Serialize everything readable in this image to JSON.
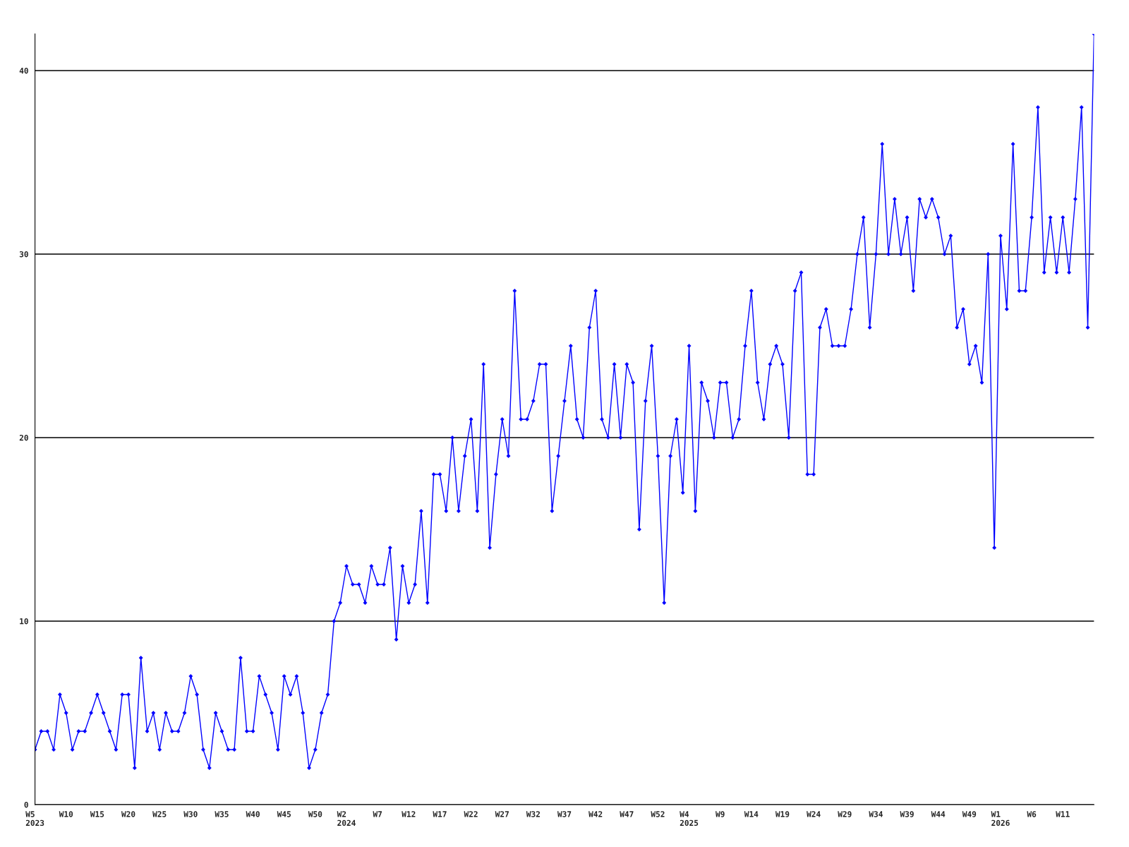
{
  "chart_data": {
    "type": "line",
    "categories": [
      "W5\n2023",
      null,
      null,
      null,
      null,
      "W10",
      null,
      null,
      null,
      null,
      "W15",
      null,
      null,
      null,
      null,
      "W20",
      null,
      null,
      null,
      null,
      "W25",
      null,
      null,
      null,
      null,
      "W30",
      null,
      null,
      null,
      null,
      "W35",
      null,
      null,
      null,
      null,
      "W40",
      null,
      null,
      null,
      null,
      "W45",
      null,
      null,
      null,
      null,
      "W50",
      null,
      null,
      null,
      null,
      "W2\n2024",
      null,
      null,
      null,
      null,
      "W7",
      null,
      null,
      null,
      null,
      "W12",
      null,
      null,
      null,
      null,
      "W17",
      null,
      null,
      null,
      null,
      "W22",
      null,
      null,
      null,
      null,
      "W27",
      null,
      null,
      null,
      null,
      "W32",
      null,
      null,
      null,
      null,
      "W37",
      null,
      null,
      null,
      null,
      "W42",
      null,
      null,
      null,
      null,
      "W47",
      null,
      null,
      null,
      null,
      "W52",
      null,
      null,
      null,
      null,
      "W4\n2025",
      null,
      null,
      null,
      null,
      "W9",
      null,
      null,
      null,
      null,
      "W14",
      null,
      null,
      null,
      null,
      "W19",
      null,
      null,
      null,
      null,
      "W24",
      null,
      null,
      null,
      null,
      "W29",
      null,
      null,
      null,
      null,
      "W34",
      null,
      null,
      null,
      null,
      "W39",
      null,
      null,
      null,
      null,
      "W44",
      null,
      null,
      null,
      null,
      "W49",
      null,
      null,
      null,
      null,
      "W1\n2026",
      null,
      null,
      null,
      null,
      "W6",
      null,
      null,
      null,
      null,
      "W11",
      null,
      null,
      null,
      null,
      null
    ],
    "series": [
      {
        "color": "#0000ff",
        "values": [
          3,
          4,
          4,
          3,
          6,
          5,
          3,
          4,
          4,
          5,
          6,
          5,
          4,
          3,
          6,
          6,
          2,
          8,
          4,
          5,
          3,
          5,
          4,
          4,
          5,
          7,
          6,
          3,
          2,
          5,
          4,
          3,
          3,
          8,
          4,
          4,
          7,
          6,
          5,
          3,
          7,
          6,
          7,
          5,
          2,
          3,
          5,
          6,
          10,
          11,
          13,
          12,
          12,
          11,
          13,
          12,
          12,
          14,
          9,
          13,
          11,
          12,
          16,
          11,
          18,
          18,
          16,
          20,
          16,
          19,
          21,
          16,
          24,
          14,
          18,
          21,
          19,
          28,
          21,
          21,
          22,
          24,
          24,
          16,
          19,
          22,
          25,
          21,
          20,
          26,
          28,
          21,
          20,
          24,
          20,
          24,
          23,
          15,
          22,
          25,
          19,
          11,
          19,
          21,
          17,
          25,
          16,
          23,
          22,
          20,
          23,
          23,
          20,
          21,
          25,
          28,
          23,
          21,
          24,
          25,
          24,
          20,
          28,
          29,
          18,
          18,
          26,
          27,
          25,
          25,
          25,
          27,
          30,
          32,
          26,
          30,
          36,
          30,
          33,
          30,
          32,
          28,
          33,
          32,
          33,
          32,
          30,
          31,
          26,
          27,
          24,
          25,
          23,
          30,
          14,
          31,
          27,
          36,
          28,
          28,
          32,
          38,
          29,
          32,
          29,
          32,
          29,
          33,
          38,
          26,
          42
        ]
      }
    ],
    "ylim": [
      0,
      42
    ],
    "yticks": [
      0,
      10,
      20,
      30,
      40
    ],
    "grid": "y",
    "marker": "diamond",
    "line_style": "solid"
  }
}
